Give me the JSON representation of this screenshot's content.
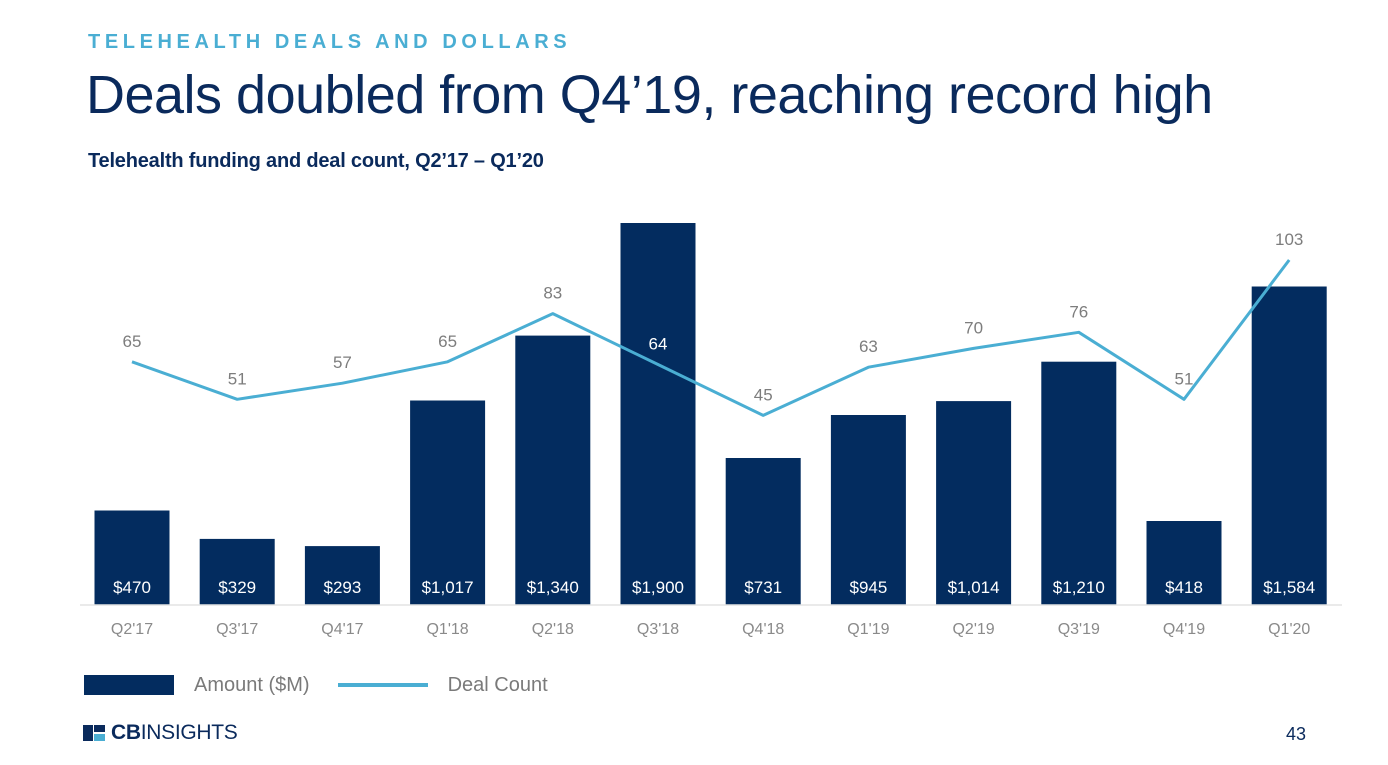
{
  "header": {
    "kicker": "TELEHEALTH DEALS AND DOLLARS",
    "title": "Deals doubled from Q4’19, reaching record high",
    "subtitle": "Telehealth funding and deal count, Q2’17 – Q1’20"
  },
  "chart_data": {
    "type": "bar",
    "categories": [
      "Q2'17",
      "Q3'17",
      "Q4'17",
      "Q1'18",
      "Q2'18",
      "Q3'18",
      "Q4'18",
      "Q1'19",
      "Q2'19",
      "Q3'19",
      "Q4'19",
      "Q1'20"
    ],
    "series": [
      {
        "name": "Amount ($M)",
        "type": "bar",
        "values": [
          470,
          329,
          293,
          1017,
          1340,
          1900,
          731,
          945,
          1014,
          1210,
          418,
          1584
        ],
        "labels": [
          "$470",
          "$329",
          "$293",
          "$1,017",
          "$1,340",
          "$1,900",
          "$731",
          "$945",
          "$1,014",
          "$1,210",
          "$418",
          "$1,584"
        ],
        "color": "#032c5f"
      },
      {
        "name": "Deal Count",
        "type": "line",
        "values": [
          65,
          51,
          57,
          65,
          83,
          64,
          45,
          63,
          70,
          76,
          51,
          103
        ],
        "color": "#4aaed3"
      }
    ],
    "legend_position": "bottom-left",
    "grid": false
  },
  "legend": {
    "amount_label": "Amount ($M)",
    "deal_label": "Deal Count"
  },
  "footer": {
    "logo_bold": "CB",
    "logo_rest": "INSIGHTS",
    "page_number": "43"
  }
}
